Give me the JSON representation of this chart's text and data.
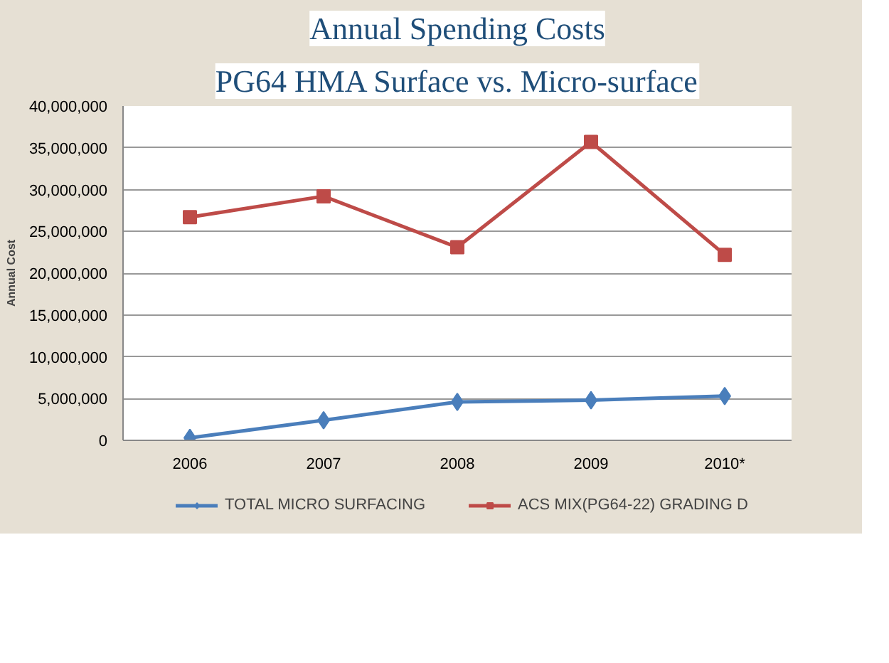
{
  "chart_data": {
    "type": "line",
    "title": "Annual Spending Costs",
    "subtitle": "PG64 HMA Surface vs. Micro-surface",
    "ylabel": "Annual Cost",
    "categories": [
      "2006",
      "2007",
      "2008",
      "2009",
      "2010*"
    ],
    "series": [
      {
        "name": "TOTAL MICRO SURFACING",
        "color": "#4a7ebb",
        "marker": "diamond",
        "values": [
          300000,
          2400000,
          4600000,
          4800000,
          5300000
        ]
      },
      {
        "name": "ACS MIX(PG64-22) GRADING D",
        "color": "#be4b48",
        "marker": "square",
        "values": [
          26700000,
          29200000,
          23100000,
          35700000,
          22200000
        ]
      }
    ],
    "ylim": [
      0,
      40000000
    ],
    "yticks": [
      {
        "value": 0,
        "label": "0"
      },
      {
        "value": 5000000,
        "label": "5,000,000"
      },
      {
        "value": 10000000,
        "label": "10,000,000"
      },
      {
        "value": 15000000,
        "label": "15,000,000"
      },
      {
        "value": 20000000,
        "label": "20,000,000"
      },
      {
        "value": 25000000,
        "label": "25,000,000"
      },
      {
        "value": 30000000,
        "label": "30,000,000"
      },
      {
        "value": 35000000,
        "label": "35,000,000"
      },
      {
        "value": 40000000,
        "label": "40,000,000"
      }
    ],
    "grid": "y",
    "legend": "bottom",
    "line_style": "solid"
  }
}
